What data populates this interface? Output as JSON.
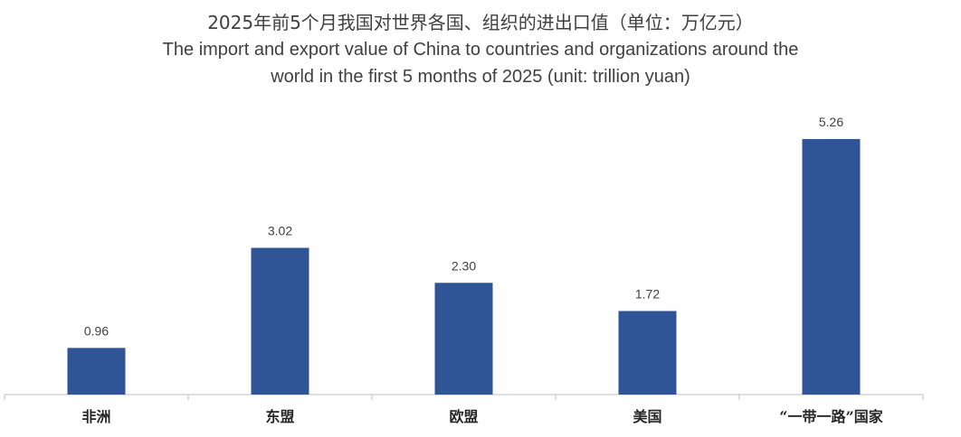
{
  "chart_data": {
    "type": "bar",
    "title": "2025年前5个月我国对世界各国、组织的进出口值（单位：万亿元）",
    "subtitle": "The import and export value of China to countries and organizations around the world in the first 5 months of 2025 (unit: trillion yuan)",
    "subtitle_lines": [
      "The import and export value of China to countries and organizations around the",
      "world in the first 5 months of 2025 (unit: trillion yuan)"
    ],
    "categories": [
      "非洲",
      "东盟",
      "欧盟",
      "美国",
      "“一带一路”国家"
    ],
    "values": [
      0.96,
      3.02,
      2.3,
      1.72,
      5.26
    ],
    "value_labels": [
      "0.96",
      "3.02",
      "2.30",
      "1.72",
      "5.26"
    ],
    "ylim": [
      0,
      5.6
    ],
    "grid": false,
    "legend": "none",
    "colors": {
      "bar": "#2f5597",
      "axis": "#bfbfbf"
    }
  }
}
